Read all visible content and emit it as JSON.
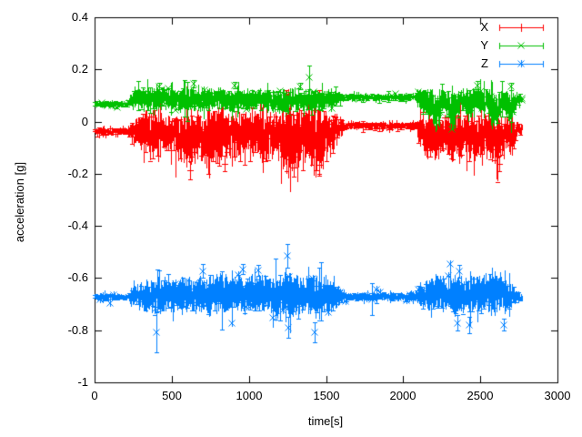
{
  "figure": {
    "background": "#ffffff",
    "axis_color": "#000000",
    "text_color": "#000000"
  },
  "chart_data": {
    "type": "line-errorbars",
    "title": "",
    "xlabel": "time[s]",
    "ylabel": "acceleration [g]",
    "xlim": [
      0,
      3000
    ],
    "ylim": [
      -1,
      0.4
    ],
    "grid": false,
    "legend_position": "top-right-inside",
    "xticks": {
      "values": [
        0,
        500,
        1000,
        1500,
        2000,
        2500,
        3000
      ],
      "labels": [
        "0",
        "500",
        "1000",
        "1500",
        "2000",
        "2500",
        "3000"
      ]
    },
    "yticks": {
      "values": [
        0.4,
        0.2,
        0,
        -0.2,
        -0.4,
        -0.6,
        -0.8,
        -1
      ],
      "labels": [
        "0.4",
        "0.2",
        "0",
        "-0.2",
        "-0.4",
        "-0.6",
        "-0.8",
        "-1"
      ]
    },
    "series": [
      {
        "name": "X",
        "color": "#ff0000",
        "marker": "plus",
        "skew": -0.9,
        "envelope": [
          [
            0,
            -0.038,
            0.01
          ],
          [
            215,
            -0.038,
            0.01
          ],
          [
            235,
            -0.04,
            0.025
          ],
          [
            300,
            -0.035,
            0.05
          ],
          [
            380,
            -0.05,
            0.065
          ],
          [
            450,
            -0.04,
            0.05
          ],
          [
            520,
            -0.05,
            0.06
          ],
          [
            600,
            -0.055,
            0.08
          ],
          [
            660,
            -0.045,
            0.07
          ],
          [
            730,
            -0.06,
            0.075
          ],
          [
            800,
            -0.05,
            0.085
          ],
          [
            870,
            -0.04,
            0.06
          ],
          [
            940,
            -0.05,
            0.065
          ],
          [
            1010,
            -0.045,
            0.06
          ],
          [
            1080,
            -0.05,
            0.075
          ],
          [
            1150,
            -0.04,
            0.065
          ],
          [
            1220,
            -0.06,
            0.085
          ],
          [
            1270,
            -0.07,
            0.095
          ],
          [
            1330,
            -0.05,
            0.07
          ],
          [
            1400,
            -0.05,
            0.075
          ],
          [
            1460,
            -0.06,
            0.085
          ],
          [
            1530,
            -0.04,
            0.055
          ],
          [
            1590,
            -0.025,
            0.03
          ],
          [
            1615,
            -0.015,
            0.01
          ],
          [
            2080,
            -0.015,
            0.01
          ],
          [
            2110,
            -0.03,
            0.045
          ],
          [
            2170,
            -0.05,
            0.06
          ],
          [
            2220,
            -0.075,
            0.065
          ],
          [
            2270,
            -0.04,
            0.05
          ],
          [
            2330,
            -0.075,
            0.065
          ],
          [
            2390,
            -0.04,
            0.055
          ],
          [
            2450,
            -0.055,
            0.065
          ],
          [
            2510,
            -0.05,
            0.06
          ],
          [
            2570,
            -0.06,
            0.07
          ],
          [
            2620,
            -0.075,
            0.06
          ],
          [
            2660,
            -0.04,
            0.045
          ],
          [
            2700,
            -0.065,
            0.05
          ],
          [
            2735,
            -0.03,
            0.02
          ],
          [
            2770,
            -0.025,
            0.01
          ]
        ],
        "spikes": [
          [
            620,
            -0.22,
            -0.15
          ],
          [
            840,
            -0.19,
            -0.13
          ],
          [
            1244,
            0.06,
            0.12
          ],
          [
            1290,
            -0.21,
            -0.14
          ],
          [
            1455,
            -0.2,
            -0.13
          ],
          [
            2620,
            -0.19,
            -0.13
          ]
        ]
      },
      {
        "name": "Y",
        "color": "#00c000",
        "marker": "cross",
        "skew": -0.4,
        "envelope": [
          [
            0,
            0.068,
            0.007
          ],
          [
            215,
            0.068,
            0.007
          ],
          [
            235,
            0.085,
            0.018
          ],
          [
            300,
            0.092,
            0.028
          ],
          [
            380,
            0.086,
            0.03
          ],
          [
            450,
            0.09,
            0.032
          ],
          [
            520,
            0.085,
            0.028
          ],
          [
            600,
            0.09,
            0.035
          ],
          [
            660,
            0.085,
            0.03
          ],
          [
            730,
            0.088,
            0.032
          ],
          [
            800,
            0.09,
            0.028
          ],
          [
            870,
            0.08,
            0.032
          ],
          [
            940,
            0.086,
            0.028
          ],
          [
            1010,
            0.09,
            0.03
          ],
          [
            1080,
            0.085,
            0.028
          ],
          [
            1150,
            0.082,
            0.03
          ],
          [
            1220,
            0.078,
            0.035
          ],
          [
            1270,
            0.082,
            0.032
          ],
          [
            1330,
            0.086,
            0.028
          ],
          [
            1400,
            0.08,
            0.035
          ],
          [
            1460,
            0.083,
            0.032
          ],
          [
            1530,
            0.088,
            0.025
          ],
          [
            1600,
            0.092,
            0.015
          ],
          [
            1620,
            0.093,
            0.01
          ],
          [
            2080,
            0.093,
            0.01
          ],
          [
            2110,
            0.09,
            0.03
          ],
          [
            2170,
            0.065,
            0.045
          ],
          [
            2215,
            0.035,
            0.055
          ],
          [
            2255,
            0.09,
            0.028
          ],
          [
            2325,
            0.03,
            0.055
          ],
          [
            2375,
            0.09,
            0.026
          ],
          [
            2430,
            0.06,
            0.045
          ],
          [
            2480,
            0.088,
            0.03
          ],
          [
            2540,
            0.078,
            0.035
          ],
          [
            2600,
            0.035,
            0.05
          ],
          [
            2645,
            0.088,
            0.03
          ],
          [
            2700,
            0.05,
            0.045
          ],
          [
            2735,
            0.088,
            0.018
          ],
          [
            2770,
            0.09,
            0.01
          ]
        ],
        "spikes": [
          [
            420,
            0.125,
            0.148
          ],
          [
            640,
            0.13,
            0.158
          ],
          [
            905,
            0.128,
            0.152
          ],
          [
            1330,
            0.125,
            0.15
          ],
          [
            1390,
            0.125,
            0.215
          ],
          [
            2480,
            0.125,
            0.155
          ],
          [
            2700,
            0.12,
            0.15
          ]
        ]
      },
      {
        "name": "Z",
        "color": "#0080ff",
        "marker": "asterisk",
        "skew": -0.1,
        "envelope": [
          [
            0,
            -0.672,
            0.01
          ],
          [
            215,
            -0.672,
            0.01
          ],
          [
            240,
            -0.67,
            0.025
          ],
          [
            310,
            -0.668,
            0.04
          ],
          [
            390,
            -0.67,
            0.048
          ],
          [
            470,
            -0.664,
            0.042
          ],
          [
            550,
            -0.668,
            0.048
          ],
          [
            630,
            -0.658,
            0.052
          ],
          [
            710,
            -0.663,
            0.048
          ],
          [
            790,
            -0.653,
            0.058
          ],
          [
            870,
            -0.66,
            0.05
          ],
          [
            950,
            -0.663,
            0.052
          ],
          [
            1030,
            -0.658,
            0.048
          ],
          [
            1110,
            -0.664,
            0.052
          ],
          [
            1190,
            -0.668,
            0.058
          ],
          [
            1270,
            -0.674,
            0.062
          ],
          [
            1350,
            -0.663,
            0.052
          ],
          [
            1430,
            -0.668,
            0.055
          ],
          [
            1510,
            -0.663,
            0.048
          ],
          [
            1580,
            -0.668,
            0.032
          ],
          [
            1615,
            -0.672,
            0.012
          ],
          [
            2080,
            -0.672,
            0.012
          ],
          [
            2110,
            -0.664,
            0.035
          ],
          [
            2170,
            -0.658,
            0.048
          ],
          [
            2230,
            -0.653,
            0.052
          ],
          [
            2290,
            -0.66,
            0.048
          ],
          [
            2350,
            -0.664,
            0.055
          ],
          [
            2410,
            -0.658,
            0.052
          ],
          [
            2470,
            -0.663,
            0.048
          ],
          [
            2530,
            -0.658,
            0.052
          ],
          [
            2590,
            -0.653,
            0.048
          ],
          [
            2650,
            -0.663,
            0.042
          ],
          [
            2705,
            -0.668,
            0.032
          ],
          [
            2740,
            -0.672,
            0.015
          ],
          [
            2770,
            -0.672,
            0.01
          ]
        ],
        "spikes": [
          [
            400,
            -0.885,
            -0.73
          ],
          [
            700,
            -0.6,
            -0.545
          ],
          [
            960,
            -0.585,
            -0.545
          ],
          [
            1060,
            -0.59,
            -0.55
          ],
          [
            1250,
            -0.56,
            -0.468
          ],
          [
            1258,
            -0.83,
            -0.75
          ],
          [
            1425,
            -0.845,
            -0.77
          ],
          [
            1800,
            -0.74,
            -0.62
          ],
          [
            2350,
            -0.8,
            -0.74
          ],
          [
            2362,
            -0.6,
            -0.55
          ],
          [
            2430,
            -0.81,
            -0.75
          ],
          [
            2650,
            -0.8,
            -0.755
          ]
        ]
      }
    ]
  }
}
